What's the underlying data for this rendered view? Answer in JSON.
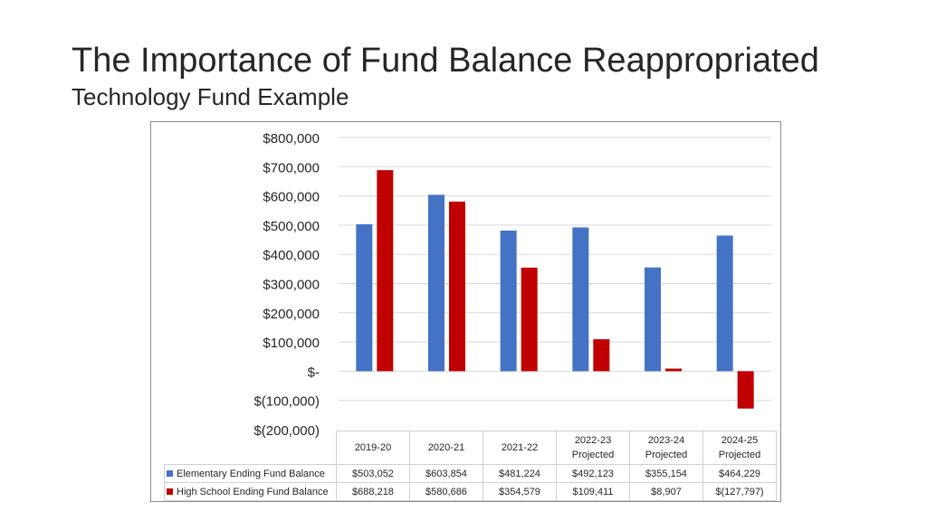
{
  "slide": {
    "title": "The Importance of Fund Balance Reappropriated",
    "subtitle": "Technology Fund Example"
  },
  "colors": {
    "elementary": "#4472C4",
    "high_school": "#C00000",
    "gridline": "#d9d9d9"
  },
  "chart_data": {
    "type": "bar",
    "title": "",
    "xlabel": "",
    "ylabel": "",
    "ylim": [
      -200000,
      800000
    ],
    "grid": true,
    "legend": "data-table",
    "y_ticks": [
      800000,
      700000,
      600000,
      500000,
      400000,
      300000,
      200000,
      100000,
      0,
      -100000,
      -200000
    ],
    "y_tick_labels": [
      "$800,000",
      "$700,000",
      "$600,000",
      "$500,000",
      "$400,000",
      "$300,000",
      "$200,000",
      "$100,000",
      "$-",
      "$(100,000)",
      "$(200,000)"
    ],
    "categories": [
      {
        "year": "2019-20",
        "note": ""
      },
      {
        "year": "2020-21",
        "note": ""
      },
      {
        "year": "2021-22",
        "note": ""
      },
      {
        "year": "2022-23",
        "note": "Projected"
      },
      {
        "year": "2023-24",
        "note": "Projected"
      },
      {
        "year": "2024-25",
        "note": "Projected"
      }
    ],
    "series": [
      {
        "name": "Elementary Ending Fund Balance",
        "values": [
          503052,
          603854,
          481224,
          492123,
          355154,
          464229
        ],
        "labels": [
          "$503,052",
          "$603,854",
          "$481,224",
          "$492,123",
          "$355,154",
          "$464,229"
        ]
      },
      {
        "name": "High School Ending Fund Balance",
        "values": [
          688218,
          580686,
          354579,
          109411,
          8907,
          -127797
        ],
        "labels": [
          "$688,218",
          "$580,686",
          "$354,579",
          "$109,411",
          "$8,907",
          "$(127,797)"
        ]
      }
    ]
  }
}
